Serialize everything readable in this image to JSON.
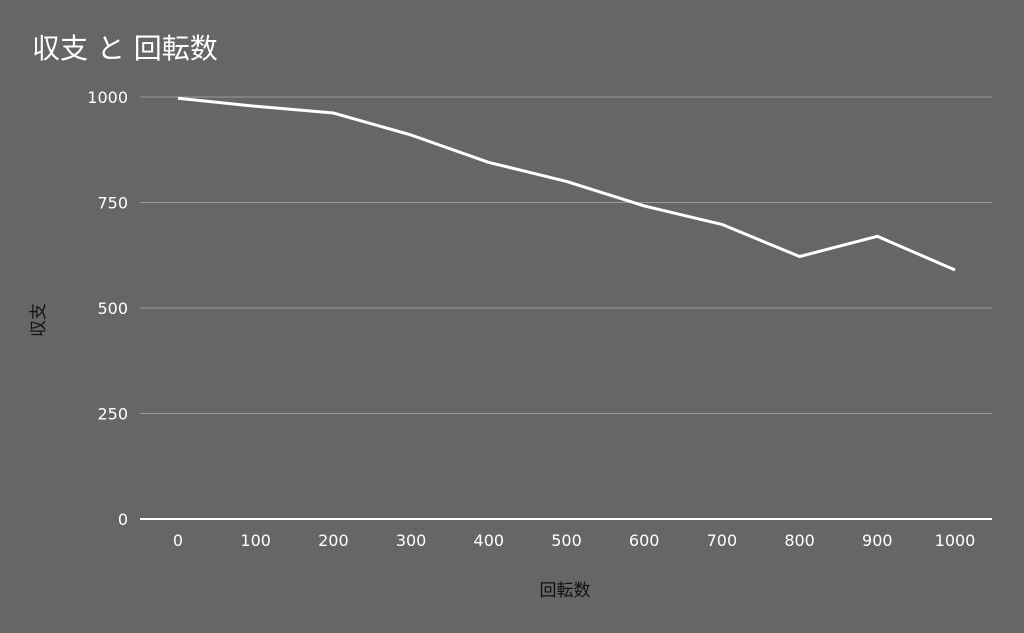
{
  "chart_data": {
    "type": "line",
    "title": "収支 と 回転数",
    "xlabel": "回転数",
    "ylabel": "収支",
    "x": [
      0,
      100,
      200,
      300,
      400,
      500,
      600,
      700,
      800,
      900,
      1000
    ],
    "x_tick_labels": [
      "0",
      "100",
      "200",
      "300",
      "400",
      "500",
      "600",
      "700",
      "800",
      "900",
      "1000"
    ],
    "y_tick_labels": [
      "0",
      "250",
      "500",
      "750",
      "1000"
    ],
    "y_ticks": [
      0,
      250,
      500,
      750,
      1000
    ],
    "ylim": [
      0,
      1000
    ],
    "grid": true,
    "series": [
      {
        "values": [
          997,
          978,
          962,
          910,
          845,
          800,
          742,
          698,
          622,
          670,
          590
        ]
      }
    ],
    "colors": {
      "background": "#666666",
      "line": "#ffffff",
      "grid": "#9a9a9a",
      "axis": "#ffffff"
    }
  }
}
